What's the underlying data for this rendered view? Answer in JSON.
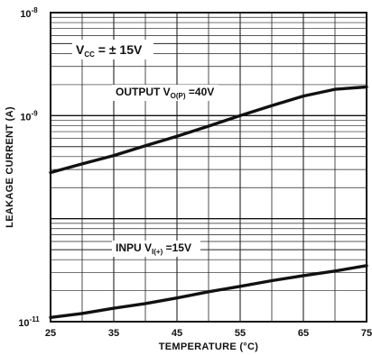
{
  "chart_data": {
    "type": "line",
    "title": "",
    "xlabel": "TEMPERATURE (°C)",
    "ylabel": "LEAKAGE CURRENT (A)",
    "xlim": [
      25,
      75
    ],
    "ylim": [
      1e-11,
      1e-08
    ],
    "y_scale": "log",
    "grid": true,
    "x_ticks": [
      "25",
      "35",
      "45",
      "55",
      "65",
      "75"
    ],
    "y_ticks": [
      {
        "value": 1e-08,
        "base": "10",
        "exp": "-8"
      },
      {
        "value": 1e-09,
        "base": "10",
        "exp": "-9"
      },
      {
        "value": 1e-11,
        "base": "10",
        "exp": "-11"
      }
    ],
    "series": [
      {
        "name": "OUTPUT",
        "x": [
          25,
          30,
          35,
          40,
          45,
          50,
          55,
          60,
          65,
          70,
          75
        ],
        "y": [
          2.8e-10,
          3.4e-10,
          4.1e-10,
          5.1e-10,
          6.3e-10,
          7.9e-10,
          1e-09,
          1.25e-09,
          1.55e-09,
          1.8e-09,
          1.9e-09
        ]
      },
      {
        "name": "INPUT",
        "x": [
          25,
          30,
          35,
          40,
          45,
          50,
          55,
          60,
          65,
          70,
          75
        ],
        "y": [
          1.1e-11,
          1.2e-11,
          1.35e-11,
          1.5e-11,
          1.7e-11,
          1.95e-11,
          2.2e-11,
          2.5e-11,
          2.8e-11,
          3.1e-11,
          3.5e-11
        ]
      }
    ],
    "annotations": [
      {
        "id": "vcc",
        "main": "V",
        "sub": "CC",
        "rest": " = ± 15V"
      },
      {
        "id": "output",
        "main": "OUTPUT V",
        "sub": "O(P)",
        "rest": " =40V"
      },
      {
        "id": "input",
        "main": "INPU V",
        "sub": "I(+)",
        "rest": " =15V"
      }
    ]
  }
}
